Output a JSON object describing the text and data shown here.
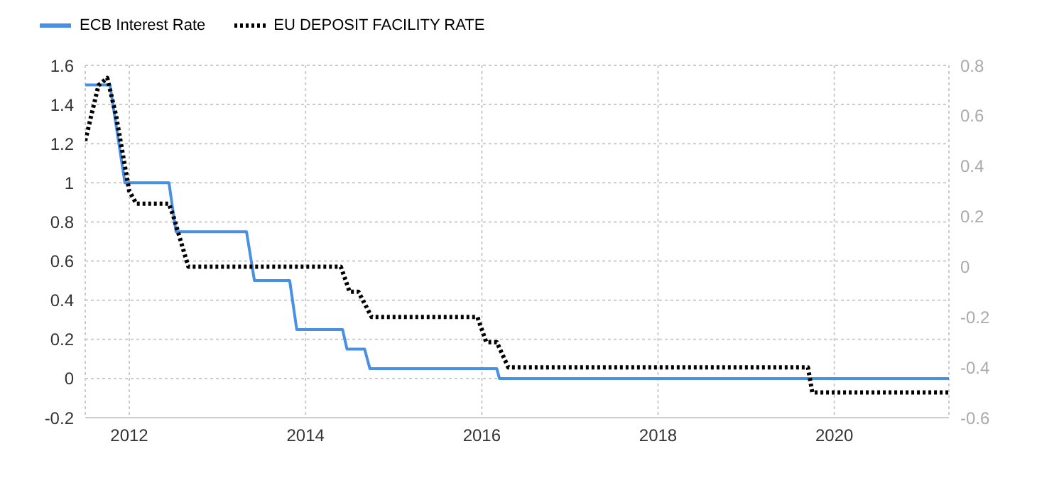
{
  "chart_data": {
    "type": "line",
    "xlim": [
      2011.5,
      2021.3
    ],
    "xticks": [
      2012,
      2014,
      2016,
      2018,
      2020
    ],
    "ylim": [
      -0.2,
      1.6
    ],
    "yticks": [
      -0.2,
      0,
      0.2,
      0.4,
      0.6,
      0.8,
      1,
      1.2,
      1.4,
      1.6
    ],
    "y2lim": [
      -0.6,
      0.8
    ],
    "y2ticks": [
      -0.6,
      -0.4,
      -0.2,
      0,
      0.2,
      0.4,
      0.6,
      0.8
    ],
    "grid": true,
    "legend": "top left",
    "series": [
      {
        "name": "ECB Interest Rate",
        "color": "#4a90e2",
        "line_style": "solid",
        "x": [
          2011.5,
          2011.78,
          2011.95,
          2012.45,
          2012.53,
          2013.33,
          2013.42,
          2013.82,
          2013.9,
          2014.42,
          2014.47,
          2014.67,
          2014.73,
          2016.17,
          2016.2,
          2021.3
        ],
        "values": [
          1.5,
          1.5,
          1.0,
          1.0,
          0.75,
          0.75,
          0.5,
          0.5,
          0.25,
          0.25,
          0.15,
          0.15,
          0.05,
          0.05,
          0,
          0
        ]
      },
      {
        "name": "EU DEPOSIT FACILITY RATE",
        "color": "#000000",
        "line_style": "dotted",
        "axis": "y2",
        "x": [
          2011.5,
          2011.65,
          2011.75,
          2011.85,
          2012.0,
          2012.08,
          2012.45,
          2012.5,
          2012.67,
          2014.4,
          2014.5,
          2014.6,
          2014.75,
          2015.95,
          2016.05,
          2016.17,
          2016.3,
          2019.7,
          2019.75,
          2021.3
        ],
        "values": [
          0.5,
          0.72,
          0.75,
          0.6,
          0.3,
          0.25,
          0.25,
          0.2,
          0,
          0,
          -0.1,
          -0.1,
          -0.2,
          -0.2,
          -0.3,
          -0.3,
          -0.4,
          -0.4,
          -0.5,
          -0.5
        ]
      }
    ]
  }
}
